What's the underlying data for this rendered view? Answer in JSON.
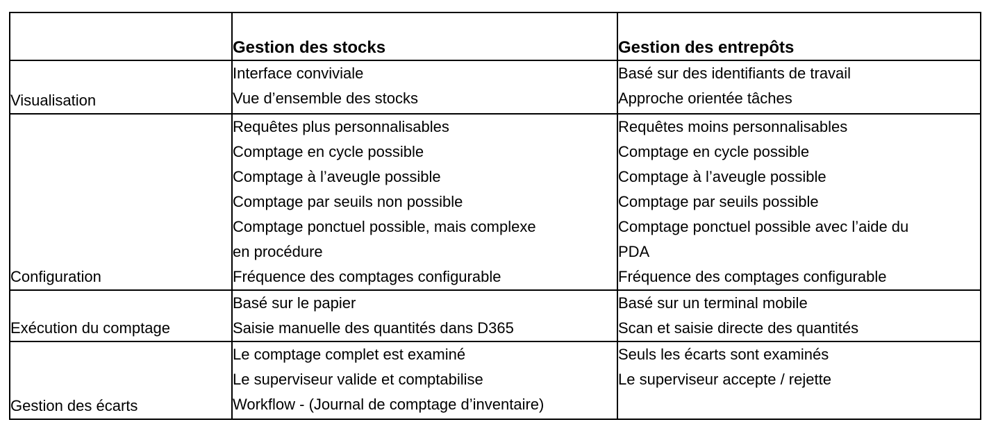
{
  "table": {
    "header": {
      "label_col": "",
      "stocks": "Gestion des stocks",
      "entrepots": "Gestion des entrepôts"
    },
    "rows": [
      {
        "label": "Visualisation",
        "stocks_lines": [
          "Interface conviviale",
          "Vue d’ensemble des stocks"
        ],
        "entrepots_lines": [
          "Basé sur des identifiants de travail",
          "Approche orientée tâches"
        ]
      },
      {
        "label": "Configuration",
        "stocks_lines": [
          "Requêtes plus personnalisables",
          "Comptage en cycle possible",
          "Comptage à l’aveugle possible",
          "Comptage par seuils non possible",
          "Comptage ponctuel possible, mais complexe",
          "en procédure",
          "Fréquence des comptages configurable"
        ],
        "entrepots_lines": [
          "Requêtes moins personnalisables",
          "Comptage en cycle possible",
          "Comptage à l’aveugle possible",
          "Comptage par seuils possible",
          "Comptage ponctuel possible avec l’aide du",
          "PDA",
          "Fréquence des comptages configurable"
        ]
      },
      {
        "label": "Exécution du comptage",
        "stocks_lines": [
          "Basé sur le papier",
          "Saisie manuelle des quantités dans D365"
        ],
        "entrepots_lines": [
          "Basé sur un terminal mobile",
          "Scan et saisie directe des quantités"
        ]
      },
      {
        "label": "Gestion des écarts",
        "stocks_lines": [
          "Le comptage complet est examiné",
          "Le superviseur valide et comptabilise",
          "Workflow - (Journal de comptage d’inventaire)"
        ],
        "entrepots_lines": [
          "Seuls les écarts sont examinés",
          "Le superviseur accepte / rejette"
        ]
      }
    ]
  }
}
